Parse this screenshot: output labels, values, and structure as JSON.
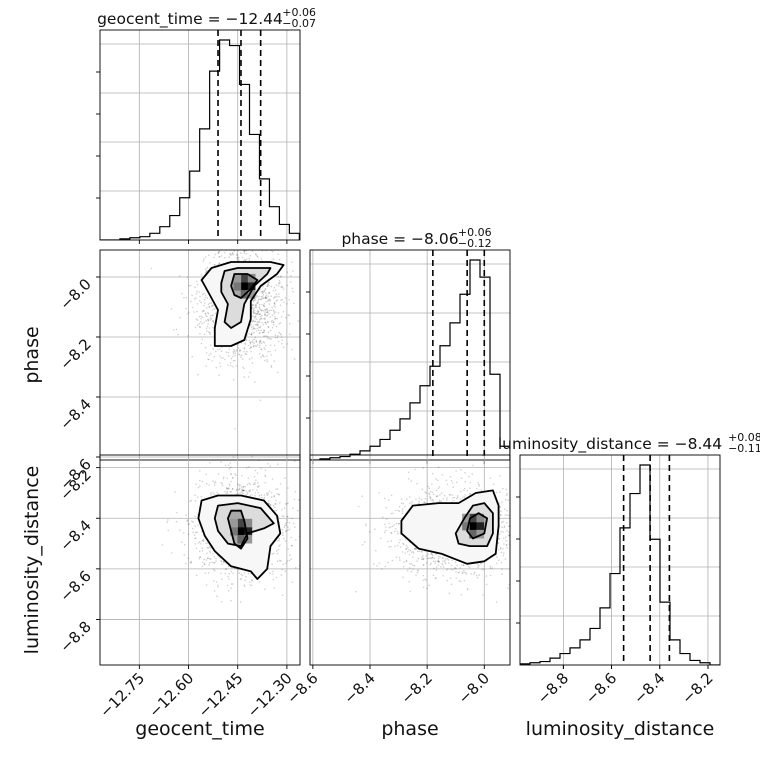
{
  "chart_data": {
    "type": "corner",
    "grid": true,
    "parameters": [
      {
        "name": "geocent_time",
        "title_main": "geocent_time = −12.44",
        "title_plus": "+0.06",
        "title_minus": "−0.07",
        "range": [
          -12.87,
          -12.26
        ],
        "ticks": [
          -12.75,
          -12.6,
          -12.45,
          -12.3
        ],
        "tick_labels": [
          "−12.75",
          "−12.60",
          "−12.45",
          "−12.30"
        ],
        "quantiles": [
          -12.51,
          -12.44,
          -12.38
        ],
        "hist": {
          "edges": [
            -12.87,
            -12.8396,
            -12.8092,
            -12.7788,
            -12.7484,
            -12.718,
            -12.6876,
            -12.6572,
            -12.6268,
            -12.5964,
            -12.566,
            -12.5356,
            -12.5052,
            -12.4748,
            -12.4444,
            -12.414,
            -12.3836,
            -12.3532,
            -12.3228,
            -12.2924,
            -12.262
          ],
          "counts": [
            0,
            0,
            1,
            2,
            3,
            6,
            12,
            22,
            38,
            62,
            100,
            152,
            180,
            175,
            140,
            95,
            55,
            30,
            14,
            6
          ]
        }
      },
      {
        "name": "phase",
        "title_main": "phase = −8.06",
        "title_plus": "+0.06",
        "title_minus": "−0.12",
        "range": [
          -8.61,
          -7.91
        ],
        "ticks": [
          -8.6,
          -8.4,
          -8.2,
          -8.0
        ],
        "tick_labels": [
          "−8.6",
          "−8.4",
          "−8.2",
          "−8.0"
        ],
        "quantiles": [
          -8.18,
          -8.06,
          -8.0
        ],
        "hist": {
          "edges": [
            -8.61,
            -8.575,
            -8.54,
            -8.505,
            -8.47,
            -8.435,
            -8.4,
            -8.365,
            -8.33,
            -8.295,
            -8.26,
            -8.225,
            -8.19,
            -8.155,
            -8.12,
            -8.085,
            -8.05,
            -8.015,
            -7.98,
            -7.945,
            -7.91
          ],
          "counts": [
            0,
            1,
            2,
            3,
            5,
            8,
            12,
            18,
            26,
            36,
            50,
            65,
            82,
            100,
            120,
            145,
            175,
            160,
            75,
            12
          ]
        }
      },
      {
        "name": "luminosity_distance",
        "title_main": "luminosity_distance = −8.44",
        "title_plus": "+0.08",
        "title_minus": "−0.11",
        "range": [
          -8.98,
          -8.15
        ],
        "ticks": [
          -8.8,
          -8.6,
          -8.4,
          -8.2
        ],
        "tick_labels": [
          "−8.8",
          "−8.6",
          "−8.4",
          "−8.2"
        ],
        "quantiles": [
          -8.55,
          -8.44,
          -8.36
        ],
        "hist": {
          "edges": [
            -8.98,
            -8.9385,
            -8.897,
            -8.8555,
            -8.814,
            -8.7725,
            -8.731,
            -8.6895,
            -8.648,
            -8.6065,
            -8.565,
            -8.5235,
            -8.482,
            -8.4405,
            -8.399,
            -8.3575,
            -8.316,
            -8.2745,
            -8.233,
            -8.1915,
            -8.15
          ],
          "counts": [
            1,
            2,
            3,
            6,
            10,
            15,
            22,
            32,
            50,
            80,
            120,
            150,
            175,
            110,
            55,
            22,
            10,
            4,
            2,
            0
          ]
        }
      }
    ],
    "pairs": [
      {
        "x": "geocent_time",
        "y": "phase",
        "cloud_center": [
          -12.44,
          -8.09
        ],
        "cloud_spread": [
          0.065,
          0.095
        ],
        "peak": [
          -12.43,
          -8.03
        ],
        "contours": [
          [
            [
              -12.56,
              -8.01
            ],
            [
              -12.53,
              -7.97
            ],
            [
              -12.47,
              -7.95
            ],
            [
              -12.41,
              -7.95
            ],
            [
              -12.35,
              -7.95
            ],
            [
              -12.31,
              -7.96
            ],
            [
              -12.33,
              -7.99
            ],
            [
              -12.38,
              -8.03
            ],
            [
              -12.41,
              -8.08
            ],
            [
              -12.41,
              -8.14
            ],
            [
              -12.43,
              -8.21
            ],
            [
              -12.47,
              -8.23
            ],
            [
              -12.52,
              -8.23
            ],
            [
              -12.52,
              -8.17
            ],
            [
              -12.51,
              -8.11
            ],
            [
              -12.54,
              -8.05
            ]
          ],
          [
            [
              -12.5,
              -8.02
            ],
            [
              -12.49,
              -7.98
            ],
            [
              -12.45,
              -7.97
            ],
            [
              -12.4,
              -7.97
            ],
            [
              -12.35,
              -7.97
            ],
            [
              -12.36,
              -7.99
            ],
            [
              -12.4,
              -8.03
            ],
            [
              -12.43,
              -8.09
            ],
            [
              -12.44,
              -8.15
            ],
            [
              -12.47,
              -8.17
            ],
            [
              -12.49,
              -8.15
            ],
            [
              -12.48,
              -8.09
            ],
            [
              -12.5,
              -8.05
            ]
          ],
          [
            [
              -12.47,
              -8.03
            ],
            [
              -12.46,
              -7.99
            ],
            [
              -12.42,
              -7.99
            ],
            [
              -12.39,
              -8.01
            ],
            [
              -12.41,
              -8.04
            ],
            [
              -12.44,
              -8.07
            ],
            [
              -12.46,
              -8.06
            ]
          ]
        ]
      },
      {
        "x": "geocent_time",
        "y": "luminosity_distance",
        "cloud_center": [
          -12.44,
          -8.44
        ],
        "cloud_spread": [
          0.07,
          0.1
        ],
        "peak": [
          -12.44,
          -8.45
        ],
        "contours": [
          [
            [
              -12.57,
              -8.4
            ],
            [
              -12.56,
              -8.33
            ],
            [
              -12.51,
              -8.31
            ],
            [
              -12.44,
              -8.31
            ],
            [
              -12.37,
              -8.33
            ],
            [
              -12.33,
              -8.39
            ],
            [
              -12.32,
              -8.46
            ],
            [
              -12.35,
              -8.51
            ],
            [
              -12.36,
              -8.6
            ],
            [
              -12.39,
              -8.64
            ],
            [
              -12.41,
              -8.61
            ],
            [
              -12.47,
              -8.59
            ],
            [
              -12.52,
              -8.53
            ],
            [
              -12.55,
              -8.47
            ]
          ],
          [
            [
              -12.52,
              -8.4
            ],
            [
              -12.51,
              -8.35
            ],
            [
              -12.45,
              -8.34
            ],
            [
              -12.38,
              -8.36
            ],
            [
              -12.34,
              -8.42
            ],
            [
              -12.37,
              -8.44
            ],
            [
              -12.42,
              -8.46
            ],
            [
              -12.44,
              -8.51
            ],
            [
              -12.48,
              -8.5
            ],
            [
              -12.51,
              -8.45
            ]
          ],
          [
            [
              -12.48,
              -8.4
            ],
            [
              -12.47,
              -8.37
            ],
            [
              -12.44,
              -8.37
            ],
            [
              -12.43,
              -8.41
            ],
            [
              -12.42,
              -8.48
            ],
            [
              -12.44,
              -8.52
            ],
            [
              -12.46,
              -8.5
            ],
            [
              -12.47,
              -8.45
            ]
          ]
        ]
      },
      {
        "x": "phase",
        "y": "luminosity_distance",
        "cloud_center": [
          -8.11,
          -8.45
        ],
        "cloud_spread": [
          0.11,
          0.09
        ],
        "peak": [
          -8.04,
          -8.43
        ],
        "contours": [
          [
            [
              -8.29,
              -8.41
            ],
            [
              -8.25,
              -8.35
            ],
            [
              -8.16,
              -8.34
            ],
            [
              -8.09,
              -8.34
            ],
            [
              -8.03,
              -8.3
            ],
            [
              -7.97,
              -8.29
            ],
            [
              -7.95,
              -8.35
            ],
            [
              -7.95,
              -8.43
            ],
            [
              -7.96,
              -8.54
            ],
            [
              -8.0,
              -8.57
            ],
            [
              -8.06,
              -8.58
            ],
            [
              -8.15,
              -8.54
            ],
            [
              -8.23,
              -8.52
            ],
            [
              -8.29,
              -8.46
            ]
          ],
          [
            [
              -8.1,
              -8.46
            ],
            [
              -8.07,
              -8.4
            ],
            [
              -8.04,
              -8.35
            ],
            [
              -8.0,
              -8.34
            ],
            [
              -7.97,
              -8.38
            ],
            [
              -7.97,
              -8.46
            ],
            [
              -7.99,
              -8.51
            ],
            [
              -8.05,
              -8.51
            ],
            [
              -8.09,
              -8.5
            ]
          ],
          [
            [
              -8.06,
              -8.45
            ],
            [
              -8.05,
              -8.4
            ],
            [
              -8.02,
              -8.38
            ],
            [
              -7.99,
              -8.4
            ],
            [
              -8.0,
              -8.46
            ],
            [
              -8.04,
              -8.48
            ]
          ]
        ]
      }
    ],
    "xlabels": [
      "geocent_time",
      "phase",
      "luminosity_distance"
    ],
    "ylabels": [
      "phase",
      "luminosity_distance"
    ]
  }
}
